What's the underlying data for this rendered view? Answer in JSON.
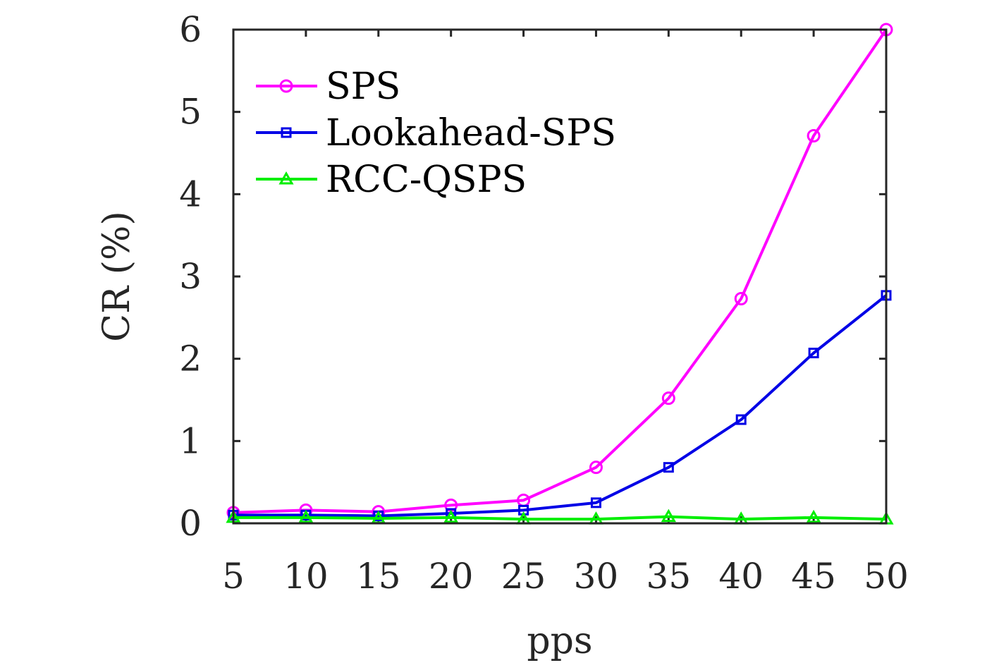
{
  "chart_data": {
    "type": "line",
    "xlabel": "pps",
    "ylabel": "CR (%)",
    "x": [
      5,
      10,
      15,
      20,
      25,
      30,
      35,
      40,
      45,
      50
    ],
    "xlim": [
      5,
      50
    ],
    "ylim": [
      0,
      6
    ],
    "xticks": [
      "5",
      "10",
      "15",
      "20",
      "25",
      "30",
      "35",
      "40",
      "45",
      "50"
    ],
    "yticks": [
      "0",
      "1",
      "2",
      "3",
      "4",
      "5",
      "6"
    ],
    "grid": false,
    "legend_position": "top-left",
    "series": [
      {
        "name": "SPS",
        "color": "#ff00ff",
        "marker": "circle",
        "values": [
          0.13,
          0.16,
          0.14,
          0.22,
          0.28,
          0.68,
          1.52,
          2.73,
          4.71,
          6.0
        ]
      },
      {
        "name": "Lookahead-SPS",
        "color": "#0000e6",
        "marker": "square",
        "values": [
          0.1,
          0.1,
          0.09,
          0.12,
          0.16,
          0.25,
          0.68,
          1.26,
          2.07,
          2.77
        ]
      },
      {
        "name": "RCC-QSPS",
        "color": "#00ee00",
        "marker": "triangle",
        "values": [
          0.07,
          0.07,
          0.06,
          0.07,
          0.05,
          0.05,
          0.08,
          0.05,
          0.07,
          0.05
        ]
      }
    ]
  }
}
